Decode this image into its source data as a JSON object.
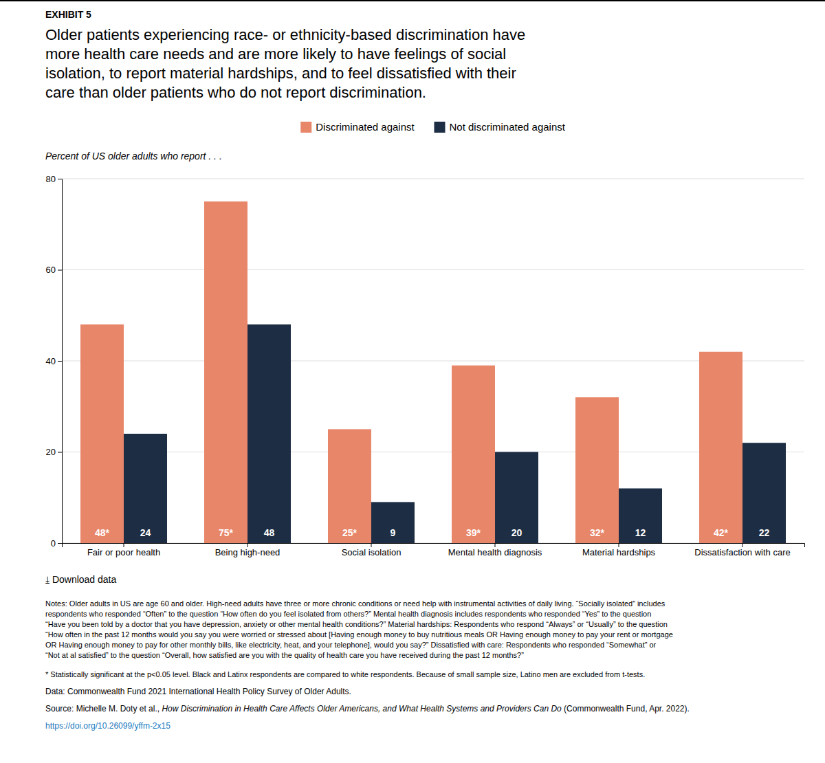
{
  "chart_data": {
    "type": "bar",
    "exhibit_label": "EXHIBIT 5",
    "title": "Older patients experiencing race- or ethnicity-based discrimination have\nmore health care needs and are more likely to have feelings of social\nisolation, to report material hardships, and to feel dissatisfied with their\ncare than older patients who do not report discrimination.",
    "subtitle": "Percent of US older adults who report . . .",
    "categories": [
      "Fair or poor health",
      "Being high-need",
      "Social isolation",
      "Mental health diagnosis",
      "Material hardships",
      "Dissatisfaction with care"
    ],
    "series": [
      {
        "name": "Discriminated against",
        "color": "#E8866A",
        "values": [
          48,
          75,
          25,
          39,
          32,
          42
        ],
        "value_labels": [
          "48*",
          "75*",
          "25*",
          "39*",
          "32*",
          "42*"
        ]
      },
      {
        "name": "Not discriminated against",
        "color": "#1D2D44",
        "values": [
          24,
          48,
          9,
          20,
          12,
          22
        ]
      }
    ],
    "ylim": [
      0,
      80
    ],
    "yticks": [
      0,
      20,
      40,
      60,
      80
    ],
    "grid": true,
    "legend": "top",
    "data_labels": true,
    "download_text": "⤓  Download data",
    "notes": [
      "Notes: Older adults in US are age 60 and older. High-need adults have three or more chronic conditions or need help with instrumental activities of daily living. “Socially isolated” includes",
      "respondents who responded “Often” to the question “How often do you feel isolated from others?” Mental health diagnosis includes respondents who responded “Yes” to the question",
      "“Have you been told by a doctor that you have depression, anxiety or other mental health conditions?” Material hardships: Respondents who respond “Always” or “Usually” to the question",
      "“How often in the past 12 months would you say you were worried or stressed about [Having enough money to buy nutritious meals OR Having enough money to pay your rent or mortgage",
      "OR Having enough money to pay for other monthly bills, like electricity, heat, and your telephone], would you say?” Dissatisfied with care: Respondents who responded “Somewhat” or",
      "“Not at al satisfied” to the question “Overall, how satisfied are you with the quality of health care you have received during the past 12 months?”"
    ],
    "footnote": "* Statistically significant at the p<0.05 level. Black and Latinx respondents are compared to white respondents. Because of small sample size, Latino men are excluded from t-tests.",
    "data_source": "Data: Commonwealth Fund 2021 International Health Policy Survey of Older Adults.",
    "source": [
      "Source: Michelle M. Doty et al., ",
      "How Discrimination in Health Care Affects Older Americans, and What Health Systems and Providers Can Do",
      " (Commonwealth Fund, Apr. 2022)."
    ],
    "source_url": "https://doi.org/10.26099/yffm-2x15"
  }
}
